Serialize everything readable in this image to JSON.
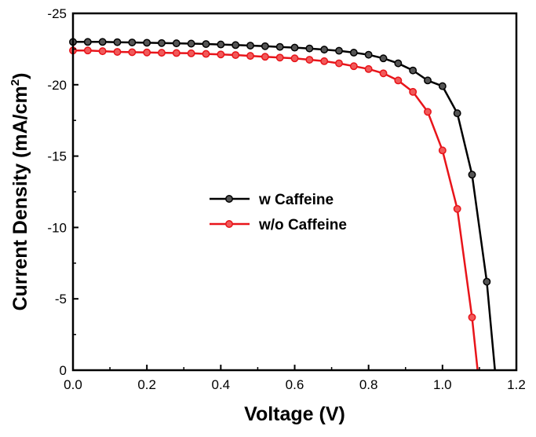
{
  "chart_data": {
    "type": "line",
    "xlabel": "Voltage (V)",
    "ylabel_main": "Current Density (mA/cm",
    "ylabel_sup": "2",
    "ylabel_close": ")",
    "xlim": [
      0.0,
      1.2
    ],
    "ylim": [
      0,
      -25
    ],
    "y_axis_inverted": true,
    "grid": false,
    "legend_position": "center-left",
    "x_ticks": [
      "0.0",
      "0.2",
      "0.4",
      "0.6",
      "0.8",
      "1.0",
      "1.2"
    ],
    "y_ticks": [
      "-25",
      "-20",
      "-15",
      "-10",
      "-5",
      "0"
    ],
    "series": [
      {
        "name": "w Caffeine",
        "color": "#000000",
        "marker_fill": "#555555",
        "x": [
          0.0,
          0.04,
          0.08,
          0.12,
          0.16,
          0.2,
          0.24,
          0.28,
          0.32,
          0.36,
          0.4,
          0.44,
          0.48,
          0.52,
          0.56,
          0.6,
          0.64,
          0.68,
          0.72,
          0.76,
          0.8,
          0.84,
          0.88,
          0.92,
          0.96,
          1.0,
          1.04,
          1.08,
          1.12,
          1.142
        ],
        "y": [
          -23.0,
          -23.0,
          -23.0,
          -22.98,
          -22.96,
          -22.94,
          -22.92,
          -22.9,
          -22.88,
          -22.85,
          -22.82,
          -22.78,
          -22.74,
          -22.7,
          -22.65,
          -22.6,
          -22.54,
          -22.46,
          -22.38,
          -22.25,
          -22.1,
          -21.85,
          -21.5,
          -21.0,
          -20.3,
          -19.9,
          -18.0,
          -13.7,
          -6.2,
          0.0
        ]
      },
      {
        "name": "w/o Caffeine",
        "color": "#e8141a",
        "marker_fill": "#f15a5a",
        "x": [
          0.0,
          0.04,
          0.08,
          0.12,
          0.16,
          0.2,
          0.24,
          0.28,
          0.32,
          0.36,
          0.4,
          0.44,
          0.48,
          0.52,
          0.56,
          0.6,
          0.64,
          0.68,
          0.72,
          0.76,
          0.8,
          0.84,
          0.88,
          0.92,
          0.96,
          1.0,
          1.04,
          1.08,
          1.095
        ],
        "y": [
          -22.4,
          -22.4,
          -22.35,
          -22.3,
          -22.28,
          -22.26,
          -22.24,
          -22.22,
          -22.2,
          -22.16,
          -22.12,
          -22.08,
          -22.02,
          -21.96,
          -21.9,
          -21.85,
          -21.75,
          -21.65,
          -21.5,
          -21.3,
          -21.1,
          -20.8,
          -20.3,
          -19.5,
          -18.1,
          -15.4,
          -11.3,
          -3.7,
          0.0
        ]
      }
    ]
  }
}
